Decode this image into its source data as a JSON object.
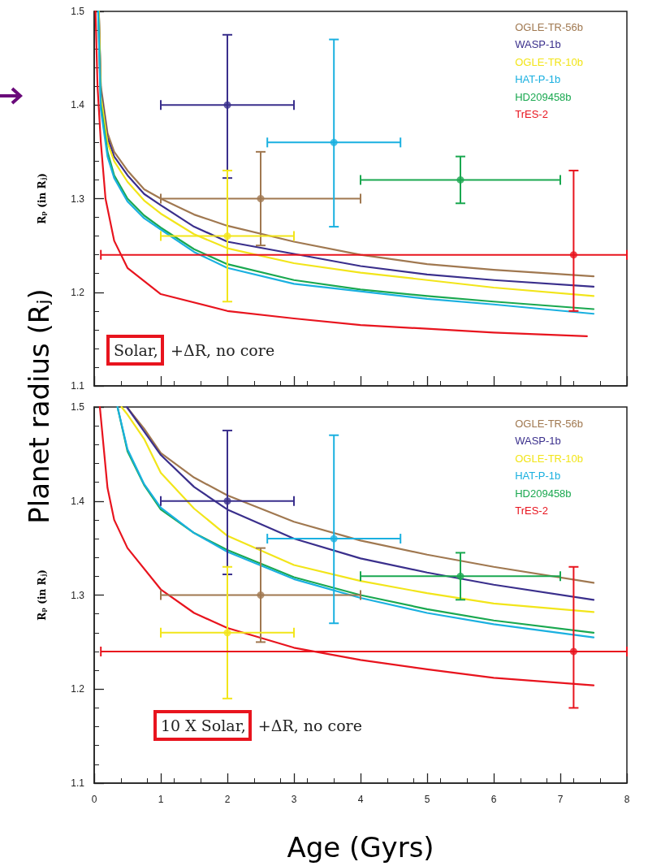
{
  "chart_data": [
    {
      "type": "scatter",
      "ylabel": "Rₚ (in Rⱼ)",
      "xlim": [
        0,
        8
      ],
      "xticks": [
        0,
        1,
        2,
        3,
        4,
        5,
        6,
        7,
        8
      ],
      "ylim": [
        1.1,
        1.5
      ],
      "yticks": [
        1.1,
        1.2,
        1.3,
        1.4,
        1.5
      ],
      "tick_labels": "y",
      "legend": "top right",
      "marker": "circle",
      "annotations": [
        "Solar, +ΔR, no core",
        "Planet radius (Rⱼ)"
      ],
      "series": [
        {
          "name": "OGLE-TR-56b",
          "color": "#a07850",
          "x": [
            2.5
          ],
          "values": [
            1.3
          ],
          "errors": [
            [
              1.25,
              1.35
            ]
          ],
          "xerrors": [
            [
              1,
              4
            ]
          ]
        },
        {
          "name": "WASP-1b",
          "color": "#3a2f8c",
          "x": [
            2
          ],
          "values": [
            1.4
          ],
          "errors": [
            [
              1.322,
              1.475
            ]
          ],
          "xerrors": [
            [
              1,
              3
            ]
          ]
        },
        {
          "name": "OGLE-TR-10b",
          "color": "#f2e51a",
          "x": [
            2
          ],
          "values": [
            1.26
          ],
          "errors": [
            [
              1.19,
              1.33
            ]
          ],
          "xerrors": [
            [
              1,
              3
            ]
          ]
        },
        {
          "name": "HAT-P-1b",
          "color": "#1ab0e0",
          "x": [
            3.6
          ],
          "values": [
            1.36
          ],
          "errors": [
            [
              1.27,
              1.47
            ]
          ],
          "xerrors": [
            [
              2.6,
              4.6
            ]
          ]
        },
        {
          "name": "HD209458b",
          "color": "#1aa850",
          "x": [
            5.5
          ],
          "values": [
            1.32
          ],
          "errors": [
            [
              1.295,
              1.345
            ]
          ],
          "xerrors": [
            [
              4,
              7
            ]
          ]
        },
        {
          "name": "TrES-2",
          "color": "#e8141e",
          "x": [
            7.2
          ],
          "values": [
            1.24
          ],
          "errors": [
            [
              1.18,
              1.33
            ]
          ],
          "xerrors": [
            [
              0.1,
              8
            ]
          ]
        },
        {
          "type": "line",
          "marker": "none",
          "color": "#a07850",
          "x": [
            0.07,
            0.1,
            0.2,
            0.3,
            0.5,
            0.75,
            1,
            1.5,
            2,
            3,
            4,
            5,
            6,
            7.5
          ],
          "values": [
            1.5,
            1.42,
            1.37,
            1.35,
            1.33,
            1.31,
            1.3,
            1.283,
            1.271,
            1.254,
            1.24,
            1.23,
            1.224,
            1.217
          ]
        },
        {
          "type": "line",
          "marker": "none",
          "color": "#3a2f8c",
          "x": [
            0.07,
            0.1,
            0.2,
            0.3,
            0.5,
            0.75,
            1,
            1.5,
            2,
            3,
            4,
            5,
            6,
            7.5
          ],
          "values": [
            1.5,
            1.415,
            1.365,
            1.345,
            1.325,
            1.305,
            1.293,
            1.27,
            1.254,
            1.241,
            1.228,
            1.219,
            1.213,
            1.206
          ]
        },
        {
          "type": "line",
          "marker": "none",
          "color": "#f2e51a",
          "x": [
            0.07,
            0.1,
            0.2,
            0.3,
            0.5,
            0.75,
            1,
            1.5,
            2,
            3,
            4,
            5,
            6,
            7.5
          ],
          "values": [
            1.5,
            1.41,
            1.36,
            1.34,
            1.318,
            1.298,
            1.284,
            1.262,
            1.247,
            1.231,
            1.221,
            1.213,
            1.205,
            1.196
          ]
        },
        {
          "type": "line",
          "marker": "none",
          "color": "#1aa850",
          "x": [
            0.06,
            0.1,
            0.2,
            0.3,
            0.5,
            0.75,
            1,
            1.5,
            2,
            3,
            4,
            5,
            6,
            7.5
          ],
          "values": [
            1.5,
            1.4,
            1.35,
            1.325,
            1.3,
            1.282,
            1.269,
            1.246,
            1.23,
            1.213,
            1.203,
            1.196,
            1.19,
            1.182
          ]
        },
        {
          "type": "line",
          "marker": "none",
          "color": "#1ab0e0",
          "x": [
            0.06,
            0.1,
            0.2,
            0.3,
            0.5,
            0.75,
            1,
            1.5,
            2,
            3,
            4,
            5,
            6,
            7.5
          ],
          "values": [
            1.5,
            1.395,
            1.345,
            1.322,
            1.297,
            1.279,
            1.267,
            1.243,
            1.226,
            1.209,
            1.201,
            1.193,
            1.187,
            1.177
          ]
        },
        {
          "type": "line",
          "marker": "none",
          "color": "#e8141e",
          "x": [
            0.02,
            0.05,
            0.1,
            0.17,
            0.3,
            0.5,
            1,
            2,
            3,
            4,
            5,
            6,
            7.4
          ],
          "values": [
            1.5,
            1.42,
            1.36,
            1.3,
            1.255,
            1.226,
            1.198,
            1.18,
            1.172,
            1.165,
            1.161,
            1.157,
            1.153
          ]
        }
      ]
    },
    {
      "type": "scatter",
      "xlabel": "Age (Gyrs)",
      "ylabel": "Rₚ (in Rⱼ)",
      "xlim": [
        0,
        8
      ],
      "xticks": [
        0,
        1,
        2,
        3,
        4,
        5,
        6,
        7,
        8
      ],
      "ylim": [
        1.1,
        1.5
      ],
      "yticks": [
        1.1,
        1.2,
        1.3,
        1.4,
        1.5
      ],
      "legend": "top right",
      "marker": "circle",
      "annotations": [
        "10 X Solar, +ΔR, no core"
      ],
      "series": [
        {
          "name": "OGLE-TR-56b",
          "color": "#a07850",
          "x": [
            2.5
          ],
          "values": [
            1.3
          ],
          "errors": [
            [
              1.25,
              1.35
            ]
          ],
          "xerrors": [
            [
              1,
              4
            ]
          ]
        },
        {
          "name": "WASP-1b",
          "color": "#3a2f8c",
          "x": [
            2
          ],
          "values": [
            1.4
          ],
          "errors": [
            [
              1.322,
              1.475
            ]
          ],
          "xerrors": [
            [
              1,
              3
            ]
          ]
        },
        {
          "name": "OGLE-TR-10b",
          "color": "#f2e51a",
          "x": [
            2
          ],
          "values": [
            1.26
          ],
          "errors": [
            [
              1.19,
              1.33
            ]
          ],
          "xerrors": [
            [
              1,
              3
            ]
          ]
        },
        {
          "name": "HAT-P-1b",
          "color": "#1ab0e0",
          "x": [
            3.6
          ],
          "values": [
            1.36
          ],
          "errors": [
            [
              1.27,
              1.47
            ]
          ],
          "xerrors": [
            [
              2.6,
              4.6
            ]
          ]
        },
        {
          "name": "HD209458b",
          "color": "#1aa850",
          "x": [
            5.5
          ],
          "values": [
            1.32
          ],
          "errors": [
            [
              1.295,
              1.345
            ]
          ],
          "xerrors": [
            [
              4,
              7
            ]
          ]
        },
        {
          "name": "TrES-2",
          "color": "#e8141e",
          "x": [
            7.2
          ],
          "values": [
            1.24
          ],
          "errors": [
            [
              1.18,
              1.33
            ]
          ],
          "xerrors": [
            [
              0.1,
              8
            ]
          ]
        },
        {
          "type": "line",
          "marker": "none",
          "color": "#a07850",
          "x": [
            0.49,
            0.75,
            1,
            1.5,
            2,
            3,
            4,
            5,
            6,
            7.5
          ],
          "values": [
            1.5,
            1.477,
            1.451,
            1.425,
            1.406,
            1.378,
            1.358,
            1.343,
            1.33,
            1.313
          ]
        },
        {
          "type": "line",
          "marker": "none",
          "color": "#3a2f8c",
          "x": [
            0.49,
            0.75,
            1,
            1.5,
            2,
            3,
            4,
            5,
            6,
            7.5
          ],
          "values": [
            1.5,
            1.474,
            1.449,
            1.415,
            1.391,
            1.36,
            1.339,
            1.324,
            1.311,
            1.295
          ]
        },
        {
          "type": "line",
          "marker": "none",
          "color": "#f2e51a",
          "x": [
            0.41,
            0.5,
            0.75,
            1,
            1.5,
            2,
            3,
            4,
            5,
            6,
            7.5
          ],
          "values": [
            1.5,
            1.492,
            1.466,
            1.43,
            1.392,
            1.363,
            1.332,
            1.315,
            1.302,
            1.291,
            1.282
          ]
        },
        {
          "type": "line",
          "marker": "none",
          "color": "#1aa850",
          "x": [
            0.35,
            0.5,
            0.75,
            1,
            1.5,
            2,
            3,
            4,
            5,
            6,
            7.5
          ],
          "values": [
            1.5,
            1.453,
            1.417,
            1.391,
            1.366,
            1.348,
            1.319,
            1.3,
            1.285,
            1.273,
            1.26
          ]
        },
        {
          "type": "line",
          "marker": "none",
          "color": "#1ab0e0",
          "x": [
            0.35,
            0.5,
            0.75,
            1,
            1.5,
            2,
            3,
            4,
            5,
            6,
            7.5
          ],
          "values": [
            1.5,
            1.455,
            1.418,
            1.393,
            1.366,
            1.346,
            1.317,
            1.297,
            1.281,
            1.269,
            1.255
          ]
        },
        {
          "type": "line",
          "marker": "none",
          "color": "#e8141e",
          "x": [
            0.085,
            0.2,
            0.3,
            0.5,
            1,
            1.5,
            2,
            3,
            4,
            5,
            6,
            7.5
          ],
          "values": [
            1.5,
            1.414,
            1.38,
            1.35,
            1.306,
            1.281,
            1.265,
            1.244,
            1.231,
            1.221,
            1.212,
            1.204
          ]
        }
      ]
    }
  ]
}
